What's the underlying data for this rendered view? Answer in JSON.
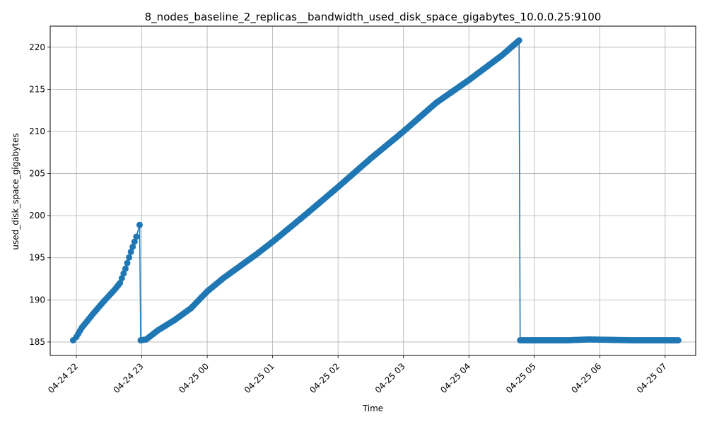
{
  "chart_data": {
    "type": "line",
    "title": "8_nodes_baseline_2_replicas__bandwidth_used_disk_space_gigabytes_10.0.0.25:9100",
    "xlabel": "Time",
    "ylabel": "used_disk_space_gigabytes",
    "x_axis": "time",
    "xlim": [
      "2024-04-24T21:36:00",
      "2024-04-25T07:28:00"
    ],
    "ylim": [
      183.4,
      222.5
    ],
    "x_ticks": [
      {
        "t": "2024-04-24T22:00:00",
        "label": "04-24 22"
      },
      {
        "t": "2024-04-24T23:00:00",
        "label": "04-24 23"
      },
      {
        "t": "2024-04-25T00:00:00",
        "label": "04-25 00"
      },
      {
        "t": "2024-04-25T01:00:00",
        "label": "04-25 01"
      },
      {
        "t": "2024-04-25T02:00:00",
        "label": "04-25 02"
      },
      {
        "t": "2024-04-25T03:00:00",
        "label": "04-25 03"
      },
      {
        "t": "2024-04-25T04:00:00",
        "label": "04-25 04"
      },
      {
        "t": "2024-04-25T05:00:00",
        "label": "04-25 05"
      },
      {
        "t": "2024-04-25T06:00:00",
        "label": "04-25 06"
      },
      {
        "t": "2024-04-25T07:00:00",
        "label": "04-25 07"
      }
    ],
    "y_ticks": [
      185,
      190,
      195,
      200,
      205,
      210,
      215,
      220
    ],
    "grid": true,
    "series_color": "#1f77b4",
    "marker": "circle",
    "series": [
      {
        "name": "",
        "points": [
          [
            "2024-04-24T21:57:00",
            185.2
          ],
          [
            "2024-04-24T22:00:00",
            185.6
          ],
          [
            "2024-04-24T22:05:00",
            186.7
          ],
          [
            "2024-04-24T22:15:00",
            188.3
          ],
          [
            "2024-04-24T22:25:00",
            189.8
          ],
          [
            "2024-04-24T22:35:00",
            191.2
          ],
          [
            "2024-04-24T22:40:00",
            192.0
          ],
          [
            "2024-04-24T22:45:00",
            193.7
          ],
          [
            "2024-04-24T22:50:00",
            195.7
          ],
          [
            "2024-04-24T22:55:00",
            197.5
          ],
          [
            "2024-04-24T22:58:00",
            198.9
          ],
          [
            "2024-04-24T22:59:00",
            185.2
          ],
          [
            "2024-04-24T23:04:00",
            185.3
          ],
          [
            "2024-04-24T23:15:00",
            186.4
          ],
          [
            "2024-04-24T23:30:00",
            187.6
          ],
          [
            "2024-04-24T23:45:00",
            189.0
          ],
          [
            "2024-04-25T00:00:00",
            191.0
          ],
          [
            "2024-04-25T00:15:00",
            192.6
          ],
          [
            "2024-04-25T00:30:00",
            194.0
          ],
          [
            "2024-04-25T00:45:00",
            195.4
          ],
          [
            "2024-04-25T01:00:00",
            196.9
          ],
          [
            "2024-04-25T01:30:00",
            200.1
          ],
          [
            "2024-04-25T02:00:00",
            203.4
          ],
          [
            "2024-04-25T02:30:00",
            206.8
          ],
          [
            "2024-04-25T03:00:00",
            210.0
          ],
          [
            "2024-04-25T03:30:00",
            213.4
          ],
          [
            "2024-04-25T04:00:00",
            216.1
          ],
          [
            "2024-04-25T04:30:00",
            219.0
          ],
          [
            "2024-04-25T04:46:00",
            220.8
          ],
          [
            "2024-04-25T04:47:00",
            185.2
          ],
          [
            "2024-04-25T05:30:00",
            185.2
          ],
          [
            "2024-04-25T05:50:00",
            185.3
          ],
          [
            "2024-04-25T06:30:00",
            185.2
          ],
          [
            "2024-04-25T07:12:00",
            185.2
          ]
        ]
      }
    ]
  }
}
